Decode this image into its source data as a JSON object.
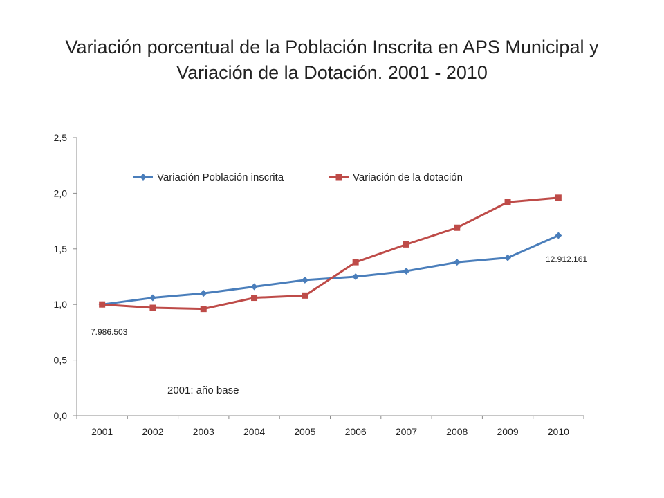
{
  "title_line1": "Variación porcentual de la Población Inscrita en APS Municipal y",
  "title_line2": "Variación de la Dotación. 2001 - 2010",
  "chart_data": {
    "type": "line",
    "title": "Variación porcentual de la Población Inscrita en APS Municipal y Variación de la Dotación. 2001 - 2010",
    "xlabel": "",
    "ylabel": "",
    "categories": [
      "2001",
      "2002",
      "2003",
      "2004",
      "2005",
      "2006",
      "2007",
      "2008",
      "2009",
      "2010"
    ],
    "ylim": [
      0,
      2.5
    ],
    "yticks": [
      "0,0",
      "0,5",
      "1,0",
      "1,5",
      "2,0",
      "2,5"
    ],
    "grid": false,
    "legend_position": "top",
    "series": [
      {
        "name": "Variación Población inscrita",
        "color": "#4a7ebb",
        "marker": "diamond",
        "values": [
          1.0,
          1.06,
          1.1,
          1.16,
          1.22,
          1.25,
          1.3,
          1.38,
          1.42,
          1.62
        ]
      },
      {
        "name": "Variación de la dotación",
        "color": "#be4b48",
        "marker": "square",
        "values": [
          1.0,
          0.97,
          0.96,
          1.06,
          1.08,
          1.38,
          1.54,
          1.69,
          1.92,
          1.96
        ]
      }
    ],
    "annotations": {
      "start_value": "7.986.503",
      "end_value": "12.912.161",
      "base_note": "2001: año base"
    }
  }
}
